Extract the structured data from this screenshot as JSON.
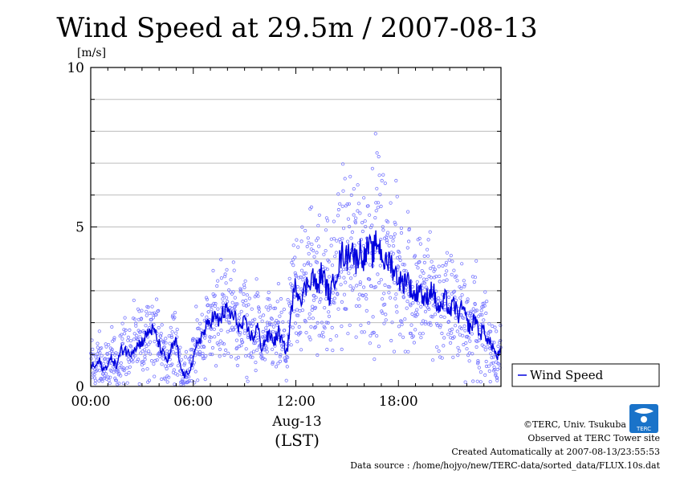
{
  "chart_data": {
    "type": "scatter",
    "title": "Wind Speed at 29.5m / 2007-08-13",
    "ylabel": "[m/s]",
    "xlabel_date": "Aug-13",
    "xlabel_tz": "(LST)",
    "x_unit": "hours",
    "xlim": [
      0,
      24
    ],
    "ylim": [
      0,
      10
    ],
    "y_ticks": [
      {
        "value": 0,
        "label": "0"
      },
      {
        "value": 5,
        "label": "5"
      },
      {
        "value": 10,
        "label": "10"
      }
    ],
    "x_ticks": [
      {
        "value": 0,
        "label": "00:00"
      },
      {
        "value": 6,
        "label": "06:00"
      },
      {
        "value": 12,
        "label": "12:00"
      },
      {
        "value": 18,
        "label": "18:00"
      }
    ],
    "grid": true,
    "legend_position": "right",
    "series": [
      {
        "name": "Wind Speed",
        "color": "#0000dd",
        "style": "line+scatter",
        "x": [
          0.0,
          0.25,
          0.5,
          0.75,
          1.0,
          1.25,
          1.5,
          1.75,
          2.0,
          2.25,
          2.5,
          2.75,
          3.0,
          3.25,
          3.5,
          3.75,
          4.0,
          4.25,
          4.5,
          4.75,
          5.0,
          5.25,
          5.5,
          5.75,
          6.0,
          6.25,
          6.5,
          6.75,
          7.0,
          7.25,
          7.5,
          7.75,
          8.0,
          8.25,
          8.5,
          8.75,
          9.0,
          9.25,
          9.5,
          9.75,
          10.0,
          10.25,
          10.5,
          10.75,
          11.0,
          11.25,
          11.5,
          11.75,
          12.0,
          12.25,
          12.5,
          12.75,
          13.0,
          13.25,
          13.5,
          13.75,
          14.0,
          14.25,
          14.5,
          14.75,
          15.0,
          15.25,
          15.5,
          15.75,
          16.0,
          16.25,
          16.5,
          16.75,
          17.0,
          17.25,
          17.5,
          17.75,
          18.0,
          18.25,
          18.5,
          18.75,
          19.0,
          19.25,
          19.5,
          19.75,
          20.0,
          20.25,
          20.5,
          20.75,
          21.0,
          21.25,
          21.5,
          21.75,
          22.0,
          22.25,
          22.5,
          22.75,
          23.0,
          23.25,
          23.5,
          23.75,
          24.0
        ],
        "y": [
          0.7,
          0.6,
          0.8,
          0.5,
          0.7,
          0.9,
          0.6,
          1.1,
          1.2,
          1.0,
          1.2,
          1.3,
          1.4,
          1.6,
          1.8,
          1.7,
          1.3,
          1.0,
          0.8,
          1.2,
          1.4,
          0.6,
          0.3,
          0.5,
          0.8,
          1.4,
          1.6,
          1.8,
          2.1,
          2.2,
          2.0,
          2.3,
          2.4,
          2.2,
          2.1,
          1.8,
          2.0,
          1.7,
          1.5,
          1.9,
          1.2,
          1.5,
          1.6,
          1.4,
          1.7,
          1.3,
          1.1,
          2.5,
          3.2,
          2.8,
          3.0,
          3.3,
          3.5,
          3.0,
          3.6,
          3.2,
          2.8,
          3.4,
          3.8,
          4.2,
          4.0,
          4.5,
          3.9,
          4.3,
          4.0,
          4.4,
          4.1,
          4.6,
          4.2,
          3.8,
          4.0,
          3.6,
          3.4,
          3.2,
          3.5,
          3.0,
          2.8,
          3.2,
          2.6,
          2.9,
          3.1,
          2.5,
          2.4,
          2.8,
          2.3,
          2.6,
          2.2,
          2.5,
          2.0,
          1.8,
          2.2,
          1.6,
          1.8,
          1.4,
          1.3,
          0.9,
          1.1
        ]
      }
    ]
  },
  "footer": {
    "copyright": "©TERC, Univ. Tsukuba",
    "observed": "Observed at TERC Tower site",
    "created": "Created Automatically at 2007-08-13/23:55:53",
    "source": "Data source : /home/hojyo/new/TERC-data/sorted_data/FLUX.10s.dat",
    "logo_text": "TERC"
  }
}
